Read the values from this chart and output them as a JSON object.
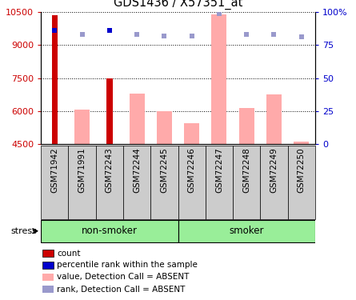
{
  "title": "GDS1436 / X57351_at",
  "samples": [
    "GSM71942",
    "GSM71991",
    "GSM72243",
    "GSM72244",
    "GSM72245",
    "GSM72246",
    "GSM72247",
    "GSM72248",
    "GSM72249",
    "GSM72250"
  ],
  "nonsmoker_indices": [
    0,
    1,
    2,
    3,
    4
  ],
  "smoker_indices": [
    5,
    6,
    7,
    8,
    9
  ],
  "ylim_left": [
    4500,
    10500
  ],
  "ylim_right": [
    0,
    100
  ],
  "yticks_left": [
    4500,
    6000,
    7500,
    9000,
    10500
  ],
  "yticks_right": [
    0,
    25,
    50,
    75,
    100
  ],
  "count_values": [
    10350,
    null,
    7500,
    null,
    null,
    null,
    null,
    null,
    null,
    null
  ],
  "count_color": "#cc0000",
  "rank_pct": [
    86,
    83,
    86,
    83,
    82,
    82,
    99,
    83,
    83,
    81
  ],
  "rank_color_dark": "#0000cc",
  "rank_color_light": "#9999cc",
  "rank_dark_indices": [
    0,
    2
  ],
  "value_absent": [
    null,
    6050,
    null,
    6800,
    5980,
    5450,
    10400,
    6150,
    6750,
    4600
  ],
  "value_absent_color": "#ffaaaa",
  "plot_bg_color": "#ffffff",
  "tick_color_left": "#cc0000",
  "tick_color_right": "#0000cc",
  "grid_color": "#000000",
  "stress_label": "stress",
  "nonsmoker_label": "non-smoker",
  "smoker_label": "smoker",
  "group_color": "#99ee99",
  "sample_bg_color": "#cccccc",
  "legend_items": [
    {
      "color": "#cc0000",
      "label": "count",
      "border": true
    },
    {
      "color": "#0000cc",
      "label": "percentile rank within the sample",
      "border": true
    },
    {
      "color": "#ffaaaa",
      "label": "value, Detection Call = ABSENT",
      "border": false
    },
    {
      "color": "#9999cc",
      "label": "rank, Detection Call = ABSENT",
      "border": false
    }
  ]
}
